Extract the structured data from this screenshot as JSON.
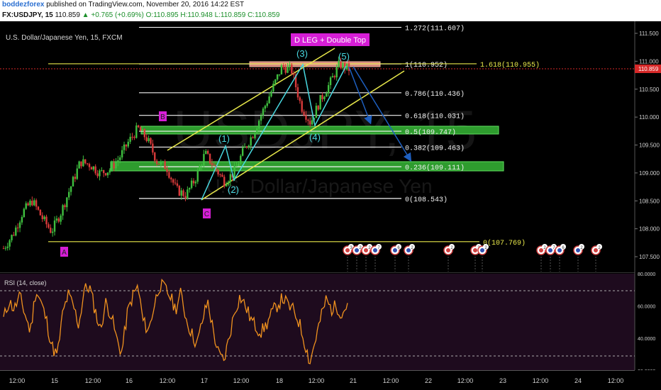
{
  "header": {
    "author": "boddezforex",
    "published_text": "published on TradingView.com, November 20, 2016 14:22 EST",
    "symbol": "FX:USDJPY, 15",
    "last": "110.859",
    "change": "▲ +0.765 (+0.69%)",
    "ohlc": "O:110.895 H:110.948 L:110.859 C:110.859"
  },
  "chart_title": "U.S. Dollar/Japanese Yen, 15, FXCM",
  "watermark": "USDJPY, 15",
  "watermark_sub": "U.S. Dollar/Japanese Yen",
  "annotation_box": "D LEG + Double Top",
  "point_labels": {
    "A": "A",
    "B": "B",
    "C": "C",
    "D": "D"
  },
  "wave_labels": [
    "(1)",
    "(2)",
    "(3)",
    "(4)",
    "(5)"
  ],
  "fib_retracement": [
    {
      "label": "1.272(111.607)",
      "value": 111.607
    },
    {
      "label": "1(110.952)",
      "value": 110.952
    },
    {
      "label": "0.786(110.436)",
      "value": 110.436
    },
    {
      "label": "0.618(110.031)",
      "value": 110.031
    },
    {
      "label": "0.5(109.747)",
      "value": 109.747
    },
    {
      "label": "0.382(109.463)",
      "value": 109.463
    },
    {
      "label": "0.236(109.111)",
      "value": 109.111
    },
    {
      "label": "0(108.543)",
      "value": 108.543
    }
  ],
  "fib_extension": [
    {
      "label": "1.618(110.955)",
      "value": 110.955
    },
    {
      "label": "0(107.769)",
      "value": 107.769
    }
  ],
  "price_axis": [
    "111.500",
    "111.000",
    "110.500",
    "110.000",
    "109.500",
    "109.000",
    "108.500",
    "108.000",
    "107.500"
  ],
  "current_price": "110.859",
  "rsi": {
    "title": "RSI (14, close)",
    "axis": [
      "80.0000",
      "60.0000",
      "40.0000",
      "20.0000"
    ],
    "upper_band": 70,
    "lower_band": 30
  },
  "time_axis": [
    "12:00",
    "15",
    "12:00",
    "16",
    "12:00",
    "17",
    "12:00",
    "18",
    "12:00",
    "21",
    "12:00",
    "22",
    "12:00",
    "23",
    "12:00",
    "24",
    "12:00"
  ],
  "events": [
    {
      "flag": "ee",
      "text": "3"
    },
    {
      "flag": "us",
      "text": "2"
    },
    {
      "flag": "ee",
      "text": "2"
    },
    {
      "flag": "us",
      "text": "7"
    },
    {
      "flag": "us",
      "text": "6"
    },
    {
      "flag": "us",
      "text": "2"
    },
    {
      "flag": "ee",
      "text": "2"
    }
  ],
  "colors": {
    "background": "#000000",
    "fib_line": "#ffffff",
    "channel": "#e8e84a",
    "zone": "#2e9c2e",
    "zone_top": "#d78a7a",
    "annotation": "#d61ed6",
    "wave_label": "#48d8e0",
    "arrow": "#1e5fbf",
    "rsi": "#f0921e",
    "rsi_bg": "#1e0b1e",
    "current_price_tag": "#d62828"
  },
  "chart_data": [
    {
      "type": "candlestick",
      "title": "U.S. Dollar/Japanese Yen, 15, FXCM",
      "ylim": [
        107.2,
        111.65
      ],
      "y_ticks": [
        111.5,
        111.0,
        110.5,
        110.0,
        109.5,
        109.0,
        108.5,
        108.0,
        107.5
      ],
      "close_path": [
        107.65,
        107.9,
        108.3,
        108.5,
        108.2,
        107.95,
        108.3,
        108.75,
        109.2,
        109.15,
        109.0,
        109.05,
        109.25,
        109.55,
        109.8,
        109.6,
        109.2,
        109.1,
        108.7,
        108.6,
        108.9,
        109.35,
        109.1,
        108.85,
        109.0,
        109.4,
        109.7,
        110.1,
        110.5,
        110.9,
        110.85,
        110.2,
        109.9,
        110.3,
        110.6,
        110.95,
        110.86
      ],
      "last": 110.859
    },
    {
      "type": "line",
      "title": "RSI (14, close)",
      "ylim": [
        20,
        80
      ],
      "bands": [
        70,
        30
      ],
      "values": [
        52,
        63,
        58,
        66,
        55,
        44,
        70,
        62,
        51,
        35,
        29,
        55,
        67,
        60,
        48,
        70,
        72,
        58,
        45,
        62,
        55,
        40,
        31,
        55,
        66,
        72,
        50,
        45,
        60,
        73,
        71,
        66,
        58,
        68,
        52,
        43,
        36,
        51,
        63,
        45,
        30,
        26,
        41,
        57,
        66,
        60,
        52,
        47,
        44,
        49,
        56,
        61,
        65,
        60,
        57,
        50,
        38,
        25,
        39,
        52,
        64,
        58,
        60,
        55,
        62
      ]
    }
  ]
}
